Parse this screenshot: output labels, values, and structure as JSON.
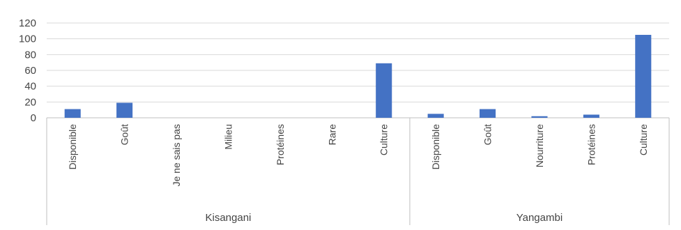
{
  "chart_data": {
    "type": "bar",
    "ylim": [
      0,
      120
    ],
    "yticks": [
      0,
      20,
      40,
      60,
      80,
      100,
      120
    ],
    "grid": true,
    "legend": "none",
    "bar_color": "#4472C4",
    "grid_color": "#D9D9D9",
    "groups": [
      {
        "name": "Kisangani",
        "categories": [
          "Disponible",
          "Goût",
          "Je ne sais pas",
          "Milieu",
          "Protéines",
          "Rare",
          "Culture"
        ],
        "values": [
          11,
          19,
          0,
          0,
          0,
          0,
          69
        ]
      },
      {
        "name": "Yangambi",
        "categories": [
          "Disponible",
          "Goût",
          "Nourriture",
          "Protéines",
          "Culture"
        ],
        "values": [
          5,
          11,
          2,
          4,
          105
        ]
      }
    ]
  }
}
